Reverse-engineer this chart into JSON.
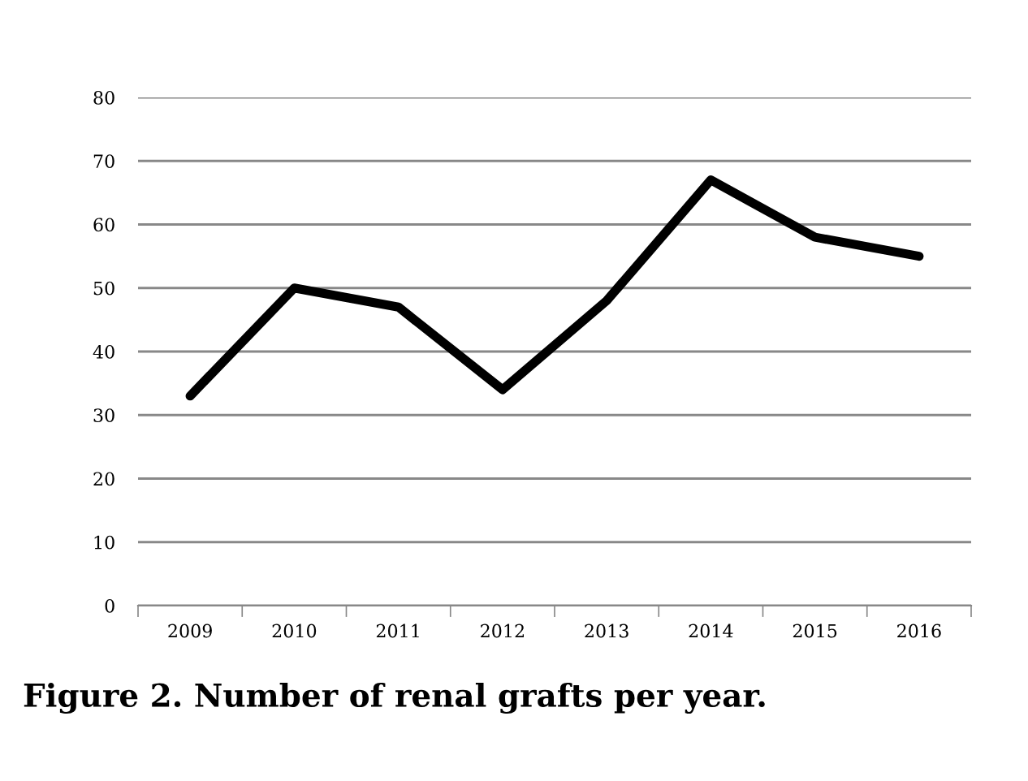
{
  "chart_data": {
    "type": "line",
    "categories": [
      "2009",
      "2010",
      "2011",
      "2012",
      "2013",
      "2014",
      "2015",
      "2016"
    ],
    "values": [
      33,
      50,
      47,
      34,
      48,
      67,
      58,
      55
    ],
    "color": "#000000",
    "ylim": [
      0,
      80
    ],
    "yticks": [
      0,
      10,
      20,
      30,
      40,
      50,
      60,
      70,
      80
    ],
    "grid": "y",
    "marker": "none",
    "line_style": "solid",
    "annotations": [
      "Figure 2. Number of renal grafts per year."
    ]
  }
}
